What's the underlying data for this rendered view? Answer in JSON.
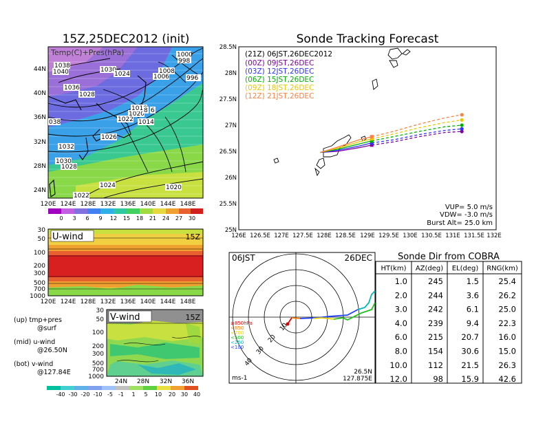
{
  "left": {
    "title": "15Z,25DEC2012 (init)",
    "map_label": "Temp(C)+Pres(hPa)",
    "lat_ticks": [
      "44N",
      "40N",
      "36N",
      "32N",
      "28N",
      "24N"
    ],
    "lon_ticks": [
      "120E",
      "124E",
      "128E",
      "132E",
      "136E",
      "140E",
      "144E",
      "148E"
    ],
    "pressure_labels": [
      "1038",
      "1040",
      "1030",
      "1024",
      "1036",
      "1028",
      "1008",
      "1006",
      "1000",
      "998",
      "996",
      "1020",
      "1018",
      "1022",
      "1014",
      "1026",
      "1032",
      "1030",
      "1028",
      "1024",
      "1020",
      "1022",
      "038",
      "6",
      "8"
    ],
    "temp_colorbar": [
      "0",
      "3",
      "6",
      "9",
      "12",
      "15",
      "18",
      "21",
      "24",
      "27",
      "30"
    ],
    "uwind_label": "U-wind",
    "uwind_time": "15Z",
    "uwind_levels": [
      "30",
      "50",
      "100",
      "200",
      "300",
      "500",
      "700",
      "1000"
    ],
    "uwind_lon_ticks": [
      "120E",
      "124E",
      "128E",
      "132E",
      "136E",
      "140E",
      "144E",
      "148E"
    ],
    "vwind_label": "V-wind",
    "vwind_time": "15Z",
    "vwind_levels": [
      "30",
      "50",
      "100",
      "200",
      "300",
      "500",
      "700",
      "1000"
    ],
    "vwind_lat_ticks": [
      "24N",
      "28N",
      "32N",
      "36N"
    ],
    "wind_colorbar": [
      "-40",
      "-30",
      "-20",
      "-10",
      "-5",
      "-1",
      "1",
      "5",
      "10",
      "20",
      "30",
      "40"
    ],
    "legend": {
      "up_a": "(up) tmp+pres",
      "up_b": "@surf",
      "mid_a": "(mid) u-wind",
      "mid_b": "@26.50N",
      "bot_a": "(bot) v-wind",
      "bot_b": "@127.84E"
    }
  },
  "tracking": {
    "title": "Sonde Tracking Forecast",
    "lat_ticks": [
      "28.5N",
      "28N",
      "27.5N",
      "27N",
      "26.5N",
      "26N",
      "25.5N",
      "25N"
    ],
    "lon_ticks": [
      "126E",
      "126.5E",
      "127E",
      "127.5E",
      "128E",
      "128.5E",
      "129E",
      "129.5E",
      "130E",
      "130.5E",
      "131E",
      "131.5E",
      "132E"
    ],
    "launch_label": "(21Z)  06JST,26DEC2012",
    "info": [
      "VUP=  5.0  m/s",
      "VDW= -3.0  m/s",
      "Burst Alt=  25.0  km"
    ]
  },
  "polar": {
    "time_label": "06JST",
    "date_label": "26DEC",
    "unit_label": "ms-1",
    "location_a": "26.5N",
    "location_b": "127.875E",
    "ring_labels": [
      "10",
      "20",
      "30",
      "40"
    ],
    "pressure_legend": [
      {
        "label": "≥850hPa",
        "color": "#e00000"
      },
      {
        "label": "<850",
        "color": "#ff8000"
      },
      {
        "label": "<700",
        "color": "#e8d000"
      },
      {
        "label": "<500",
        "color": "#20c020"
      },
      {
        "label": "<250",
        "color": "#00b8b8"
      },
      {
        "label": "<100",
        "color": "#2040ff"
      }
    ]
  },
  "table": {
    "title": "Sonde Dir from COBRA",
    "headers": [
      "HT(km)",
      "AZ(deg)",
      "EL(deg)",
      "RNG(km)"
    ],
    "rows": [
      [
        "1.0",
        "245",
        "1.5",
        "25.4"
      ],
      [
        "2.0",
        "244",
        "3.6",
        "26.2"
      ],
      [
        "3.0",
        "242",
        "6.1",
        "25.0"
      ],
      [
        "4.0",
        "239",
        "9.4",
        "22.3"
      ],
      [
        "6.0",
        "215",
        "20.7",
        "16.0"
      ],
      [
        "8.0",
        "154",
        "30.6",
        "15.0"
      ],
      [
        "10.0",
        "112",
        "21.5",
        "26.3"
      ],
      [
        "12.0",
        "98",
        "15.9",
        "42.6"
      ]
    ]
  },
  "chart_data": [
    {
      "type": "line",
      "title": "Sonde Tracking Forecast",
      "xlim": [
        126,
        132
      ],
      "ylim": [
        25,
        28.5
      ],
      "series": [
        {
          "name": "(00Z)  09JST,26DEC",
          "color": "#8000a0",
          "x": [
            127.9,
            128.3,
            128.8,
            129.1,
            129.6,
            130.2,
            130.8,
            131.2
          ],
          "y": [
            26.48,
            26.5,
            26.57,
            26.62,
            26.68,
            26.78,
            26.86,
            26.88
          ]
        },
        {
          "name": "(03Z)  12JST,26DEC",
          "color": "#3030ff",
          "x": [
            127.9,
            128.3,
            128.8,
            129.1,
            129.6,
            130.2,
            130.8,
            131.2
          ],
          "y": [
            26.48,
            26.52,
            26.6,
            26.66,
            26.72,
            26.82,
            26.9,
            26.93
          ]
        },
        {
          "name": "(06Z)  15JST,26DEC",
          "color": "#00b000",
          "x": [
            127.9,
            128.3,
            128.8,
            129.1,
            129.6,
            130.2,
            130.8,
            131.2
          ],
          "y": [
            26.48,
            26.54,
            26.64,
            26.7,
            26.78,
            26.88,
            26.97,
            27.0
          ]
        },
        {
          "name": "(09Z)  18JST,26DEC",
          "color": "#e8c800",
          "x": [
            127.9,
            128.3,
            128.8,
            129.1,
            129.6,
            130.2,
            130.8,
            131.2
          ],
          "y": [
            26.48,
            26.56,
            26.68,
            26.74,
            26.83,
            26.95,
            27.05,
            27.1
          ]
        },
        {
          "name": "(12Z)  21JST,26DEC",
          "color": "#ff8040",
          "x": [
            127.9,
            128.3,
            128.8,
            129.1,
            129.6,
            130.2,
            130.8,
            131.2
          ],
          "y": [
            26.48,
            26.58,
            26.72,
            26.78,
            26.88,
            27.02,
            27.14,
            27.2
          ]
        }
      ]
    }
  ]
}
